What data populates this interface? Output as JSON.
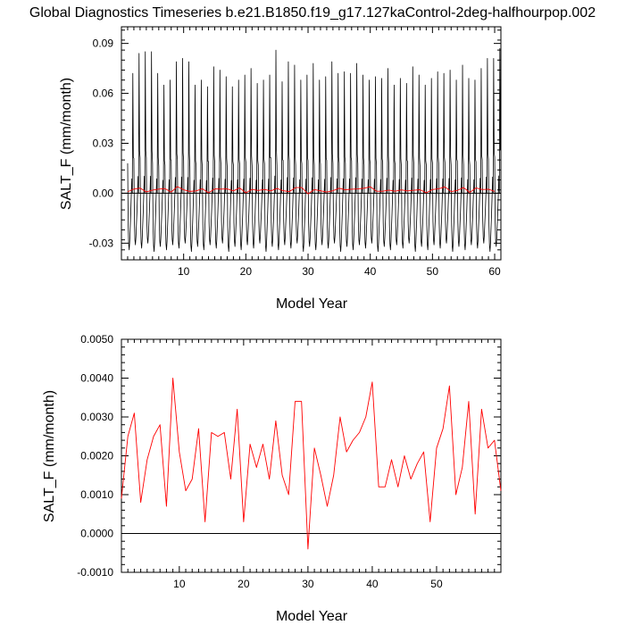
{
  "title": "Global Diagnostics Timeseries b.e21.B1850.f19_g17.127kaControl-2deg-halfhourpop.002",
  "colors": {
    "monthly": "#000000",
    "annual": "#ff0000",
    "zero_line": "#000000"
  },
  "chart_data": [
    {
      "type": "line",
      "xlabel": "Model Year",
      "ylabel": "SALT_F (mm/month)",
      "xlim": [
        0,
        61
      ],
      "ylim": [
        -0.04,
        0.1
      ],
      "xticks": [
        10,
        20,
        30,
        40,
        50,
        60
      ],
      "yticks": [
        -0.03,
        0.0,
        0.03,
        0.06,
        0.09
      ],
      "ytick_labels": [
        "-0.03",
        "0.00",
        "0.03",
        "0.06",
        "0.09"
      ],
      "zero_line": true,
      "series": [
        {
          "color": "#000000",
          "kind": "monthly",
          "annual_peaks": [
            0.072,
            0.084,
            0.085,
            0.085,
            0.072,
            0.065,
            0.068,
            0.079,
            0.081,
            0.079,
            0.065,
            0.068,
            0.064,
            0.076,
            0.074,
            0.07,
            0.064,
            0.068,
            0.071,
            0.075,
            0.066,
            0.068,
            0.071,
            0.086,
            0.067,
            0.079,
            0.077,
            0.068,
            0.071,
            0.078,
            0.068,
            0.07,
            0.079,
            0.072,
            0.073,
            0.072,
            0.078,
            0.071,
            0.068,
            0.07,
            0.069,
            0.075,
            0.065,
            0.069,
            0.066,
            0.076,
            0.071,
            0.065,
            0.069,
            0.073,
            0.072,
            0.074,
            0.068,
            0.077,
            0.069,
            0.068,
            0.075,
            0.081,
            0.081,
            0.087
          ],
          "annual_troughs": [
            -0.034,
            -0.031,
            -0.033,
            -0.03,
            -0.035,
            -0.032,
            -0.034,
            -0.031,
            -0.033,
            -0.03,
            -0.035,
            -0.032,
            -0.034,
            -0.031,
            -0.033,
            -0.03,
            -0.035,
            -0.032,
            -0.034,
            -0.031,
            -0.033,
            -0.03,
            -0.035,
            -0.032,
            -0.034,
            -0.031,
            -0.033,
            -0.03,
            -0.035,
            -0.032,
            -0.034,
            -0.031,
            -0.033,
            -0.03,
            -0.035,
            -0.032,
            -0.034,
            -0.031,
            -0.033,
            -0.03,
            -0.035,
            -0.032,
            -0.034,
            -0.031,
            -0.033,
            -0.03,
            -0.035,
            -0.032,
            -0.034,
            -0.031,
            -0.033,
            -0.03,
            -0.035,
            -0.032,
            -0.034,
            -0.031,
            -0.033,
            -0.03,
            -0.035,
            -0.032
          ]
        },
        {
          "color": "#ff0000",
          "kind": "annual",
          "x": [
            1,
            2,
            3,
            4,
            5,
            6,
            7,
            8,
            9,
            10,
            11,
            12,
            13,
            14,
            15,
            16,
            17,
            18,
            19,
            20,
            21,
            22,
            23,
            24,
            25,
            26,
            27,
            28,
            29,
            30,
            31,
            32,
            33,
            34,
            35,
            36,
            37,
            38,
            39,
            40,
            41,
            42,
            43,
            44,
            45,
            46,
            47,
            48,
            49,
            50,
            51,
            52,
            53,
            54,
            55,
            56,
            57,
            58,
            59,
            60
          ],
          "values": [
            0.0009,
            0.0025,
            0.0031,
            0.0008,
            0.0019,
            0.0025,
            0.0028,
            0.0007,
            0.004,
            0.0021,
            0.0011,
            0.0014,
            0.0027,
            0.0003,
            0.0026,
            0.0025,
            0.0026,
            0.0014,
            0.0032,
            0.0003,
            0.0023,
            0.0017,
            0.0023,
            0.0014,
            0.0029,
            0.0015,
            0.001,
            0.0034,
            0.0034,
            -0.0004,
            0.0022,
            0.0015,
            0.0007,
            0.0015,
            0.003,
            0.0021,
            0.0024,
            0.0026,
            0.003,
            0.0039,
            0.0012,
            0.0012,
            0.0019,
            0.0012,
            0.002,
            0.0014,
            0.0018,
            0.0021,
            0.0003,
            0.0022,
            0.0027,
            0.0038,
            0.001,
            0.0017,
            0.0034,
            0.0005,
            0.0032,
            0.0022,
            0.0024,
            0.0011
          ]
        }
      ]
    },
    {
      "type": "line",
      "xlabel": "Model Year",
      "ylabel": "SALT_F (mm/month)",
      "xlim": [
        1,
        60
      ],
      "ylim": [
        -0.001,
        0.005
      ],
      "xticks": [
        10,
        20,
        30,
        40,
        50
      ],
      "yticks": [
        -0.001,
        0.0,
        0.001,
        0.002,
        0.003,
        0.004,
        0.005
      ],
      "ytick_labels": [
        "-0.0010",
        "0.0000",
        "0.0010",
        "0.0020",
        "0.0030",
        "0.0040",
        "0.0050"
      ],
      "zero_line": true,
      "series": [
        {
          "color": "#ff0000",
          "x": [
            1,
            2,
            3,
            4,
            5,
            6,
            7,
            8,
            9,
            10,
            11,
            12,
            13,
            14,
            15,
            16,
            17,
            18,
            19,
            20,
            21,
            22,
            23,
            24,
            25,
            26,
            27,
            28,
            29,
            30,
            31,
            32,
            33,
            34,
            35,
            36,
            37,
            38,
            39,
            40,
            41,
            42,
            43,
            44,
            45,
            46,
            47,
            48,
            49,
            50,
            51,
            52,
            53,
            54,
            55,
            56,
            57,
            58,
            59,
            60
          ],
          "values": [
            0.0009,
            0.0025,
            0.0031,
            0.0008,
            0.0019,
            0.0025,
            0.0028,
            0.0007,
            0.004,
            0.0021,
            0.0011,
            0.0014,
            0.0027,
            0.0003,
            0.0026,
            0.0025,
            0.0026,
            0.0014,
            0.0032,
            0.0003,
            0.0023,
            0.0017,
            0.0023,
            0.0014,
            0.0029,
            0.0015,
            0.001,
            0.0034,
            0.0034,
            -0.0004,
            0.0022,
            0.0015,
            0.0007,
            0.0015,
            0.003,
            0.0021,
            0.0024,
            0.0026,
            0.003,
            0.0039,
            0.0012,
            0.0012,
            0.0019,
            0.0012,
            0.002,
            0.0014,
            0.0018,
            0.0021,
            0.0003,
            0.0022,
            0.0027,
            0.0038,
            0.001,
            0.0017,
            0.0034,
            0.0005,
            0.0032,
            0.0022,
            0.0024,
            0.0011
          ]
        }
      ]
    }
  ]
}
